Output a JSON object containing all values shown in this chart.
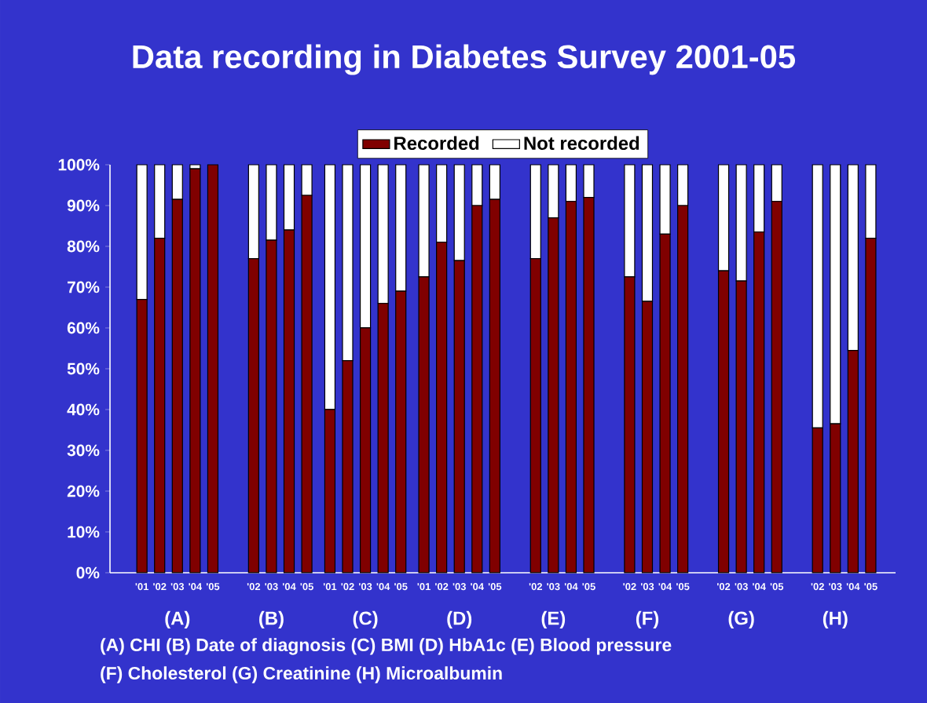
{
  "chart_data": {
    "type": "bar",
    "title": "Data recording in Diabetes Survey 2001-05",
    "categories": [
      "'01",
      "'02",
      "'03",
      "'04",
      "'05",
      null,
      "'02",
      "'03",
      "'04",
      "'05",
      "'01",
      "'02",
      "'03",
      "'04",
      "'05",
      "'01",
      "'02",
      "'03",
      "'04",
      "'05",
      null,
      "'02",
      "'03",
      "'04",
      "'05",
      null,
      "'02",
      "'03",
      "'04",
      "'05",
      null,
      "'02",
      "'03",
      "'04",
      "'05",
      null,
      "'02",
      "'03",
      "'04",
      "'05"
    ],
    "series": [
      {
        "name": "Recorded",
        "color": "#800000",
        "values": [
          67,
          82,
          91.5,
          99,
          100,
          null,
          77,
          81.5,
          84,
          92.5,
          40,
          52,
          60,
          66,
          69,
          72.5,
          81,
          76.5,
          90,
          91.5,
          null,
          77,
          87,
          91,
          92,
          null,
          72.5,
          66.5,
          83,
          90,
          null,
          74,
          71.5,
          83.5,
          91,
          null,
          35.5,
          36.5,
          54.5,
          82
        ]
      },
      {
        "name": "Not recorded",
        "color": "#ffffff",
        "values": [
          33,
          18,
          8.5,
          1,
          0,
          null,
          23,
          18.5,
          16,
          7.5,
          60,
          48,
          40,
          34,
          31,
          27.5,
          19,
          23.5,
          10,
          8.5,
          null,
          23,
          13,
          9,
          8,
          null,
          27.5,
          33.5,
          17,
          10,
          null,
          26,
          28.5,
          16.5,
          9,
          null,
          64.5,
          63.5,
          45.5,
          18
        ]
      }
    ],
    "stacked": true,
    "ylim": [
      0,
      100
    ],
    "yticks": [
      {
        "value": 0,
        "label": "0%"
      },
      {
        "value": 10,
        "label": "10%"
      },
      {
        "value": 20,
        "label": "20%"
      },
      {
        "value": 30,
        "label": "30%"
      },
      {
        "value": 40,
        "label": "40%"
      },
      {
        "value": 50,
        "label": "50%"
      },
      {
        "value": 60,
        "label": "60%"
      },
      {
        "value": 70,
        "label": "70%"
      },
      {
        "value": 80,
        "label": "80%"
      },
      {
        "value": 90,
        "label": "90%"
      },
      {
        "value": 100,
        "label": "100%"
      }
    ],
    "legend": "top",
    "annotations": [
      "(A)",
      "(B)",
      "(C)",
      "(D)",
      "(E)",
      "(F)",
      "(G)",
      "(H)",
      "(A) CHI   (B) Date of diagnosis   (C) BMI   (D) HbA1c   (E) Blood pressure",
      "(F) Cholesterol   (G) Creatinine   (H) Microalbumin"
    ]
  }
}
